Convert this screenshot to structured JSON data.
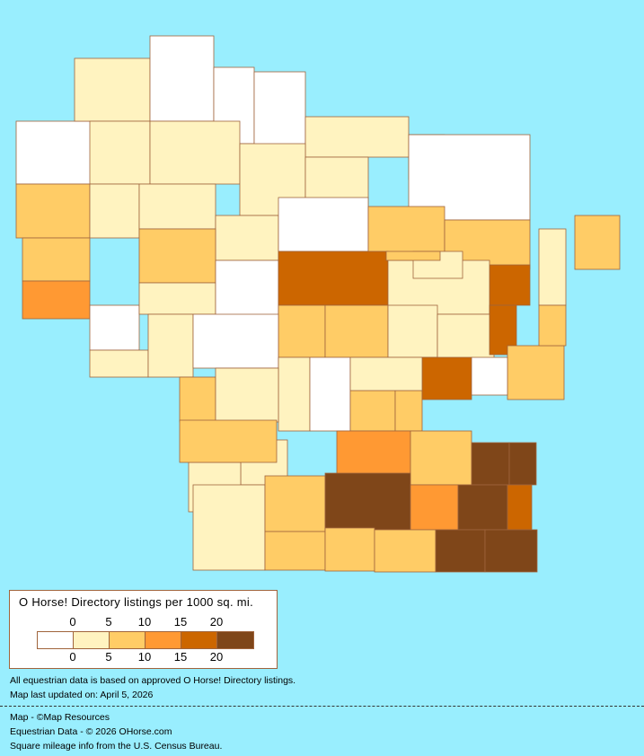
{
  "colors": {
    "background": "#99eefe",
    "border": "#a0643c",
    "classes": [
      "#ffffff",
      "#fff3c0",
      "#ffcc66",
      "#ff9933",
      "#cc6600",
      "#7f4619"
    ]
  },
  "legend": {
    "title": "O Horse! Directory listings per 1000 sq. mi.",
    "ticks_top": [
      "0",
      "5",
      "10",
      "15",
      "20"
    ],
    "ticks_bottom": [
      "0",
      "5",
      "10",
      "15",
      "20"
    ]
  },
  "regions_class": [
    0,
    1,
    0,
    0,
    0,
    1,
    0,
    0,
    2,
    1,
    1,
    1,
    1,
    2,
    1,
    1,
    1,
    0,
    2,
    2,
    4,
    1,
    2,
    3,
    0,
    2,
    1,
    0,
    4,
    1,
    1,
    1,
    2,
    2,
    1,
    1,
    1,
    1,
    0,
    1,
    4,
    0,
    2,
    2,
    1,
    2,
    2,
    4,
    1,
    2,
    2,
    3,
    2,
    5,
    5,
    1,
    1,
    1,
    2,
    5,
    3,
    5,
    4,
    2,
    2,
    2,
    5,
    5,
    0,
    2
  ],
  "notes": {
    "line1": "All equestrian data is based on approved O Horse! Directory listings.",
    "line2": "Map last updated on: April 5, 2026"
  },
  "credits": {
    "map": "Map - ©Map Resources",
    "data": "Equestrian Data - © 2026 OHorse.com",
    "census": "Square mileage info from the U.S. Census Bureau."
  }
}
